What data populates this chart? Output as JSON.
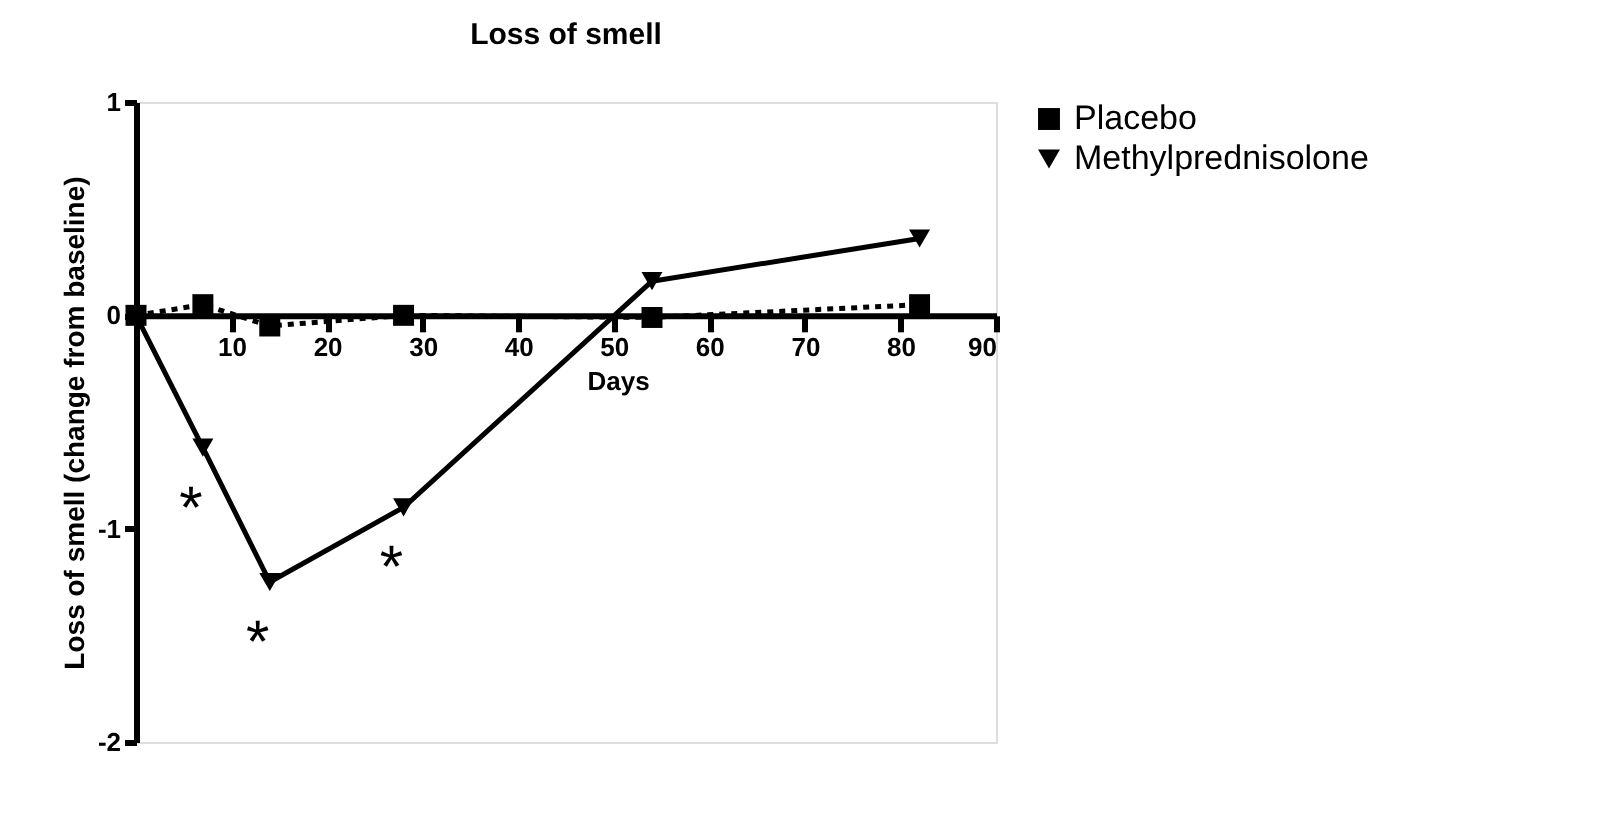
{
  "chart_data": {
    "type": "line",
    "title": "Loss of smell",
    "xlabel": "Days",
    "ylabel": "Loss of smell (change from baseline)",
    "x": [
      0,
      7,
      14,
      28,
      54,
      82
    ],
    "series": [
      {
        "name": "Placebo",
        "color": "#000000",
        "values": [
          0,
          0.05,
          -0.05,
          0,
          -0.01,
          0.05
        ],
        "marker": "square",
        "line_style": "dotted"
      },
      {
        "name": "Methylprednisolone",
        "color": "#000000",
        "values": [
          0,
          -0.62,
          -1.25,
          -0.9,
          0.16,
          0.36
        ],
        "marker": "triangle",
        "line_style": "solid"
      }
    ],
    "xlim": [
      0,
      90
    ],
    "xticks": [
      10,
      20,
      30,
      40,
      50,
      60,
      70,
      80,
      90
    ],
    "ylim": [
      -2,
      1
    ],
    "yticks": [
      -2,
      -1,
      0,
      1
    ],
    "annotations": [
      {
        "text": "*",
        "x": 7,
        "y": -0.62
      },
      {
        "text": "*",
        "x": 14,
        "y": -1.25
      },
      {
        "text": "*",
        "x": 28,
        "y": -0.9
      }
    ],
    "grid": false,
    "legend": "top right"
  }
}
